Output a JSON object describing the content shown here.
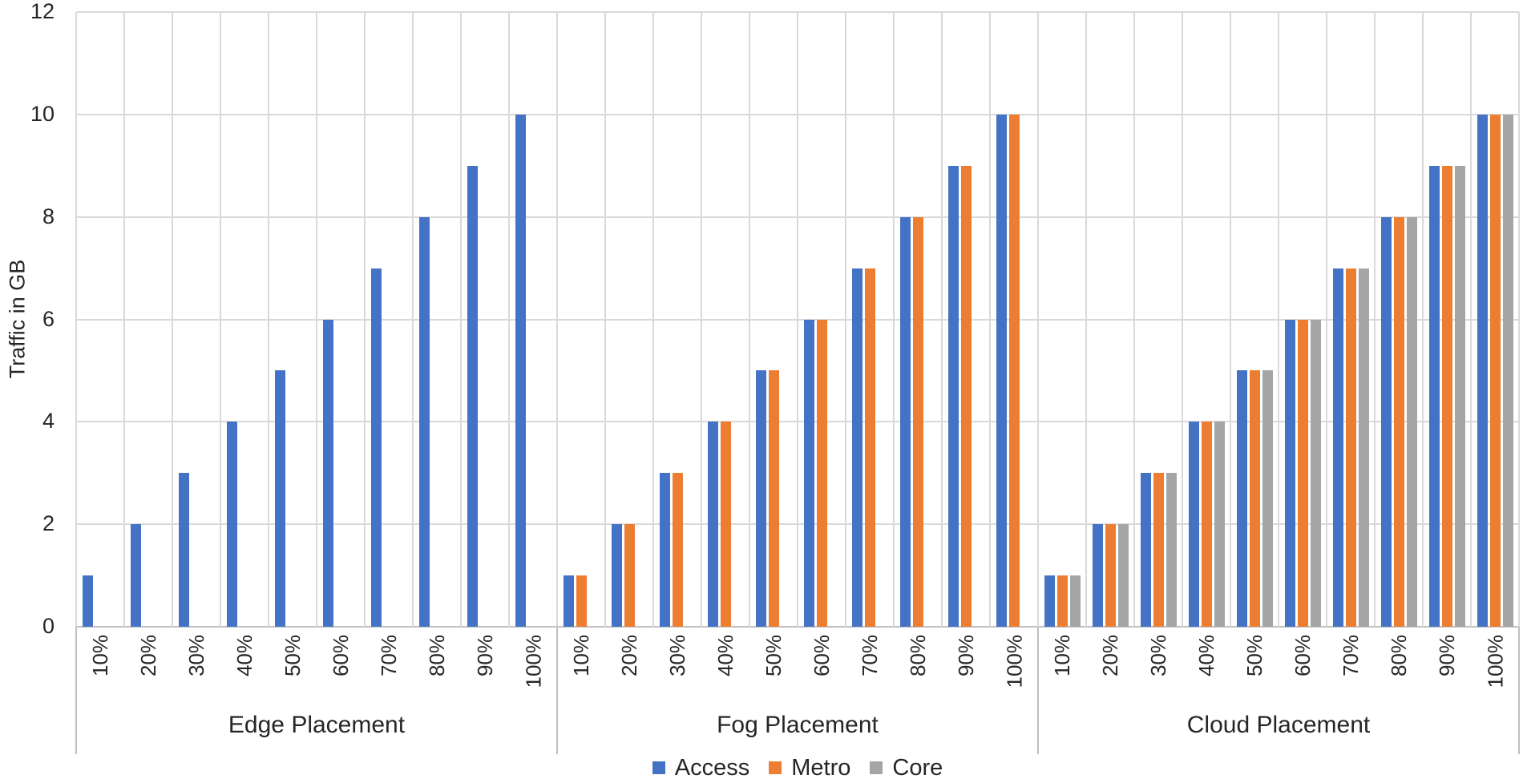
{
  "chart_data": {
    "type": "bar",
    "ylabel": "Traffic in GB",
    "ylim": [
      0,
      12
    ],
    "yticks": [
      0,
      2,
      4,
      6,
      8,
      10,
      12
    ],
    "grid": true,
    "categories": [
      "10%",
      "20%",
      "30%",
      "40%",
      "50%",
      "60%",
      "70%",
      "80%",
      "90%",
      "100%"
    ],
    "legend": {
      "position": "bottom",
      "entries": [
        {
          "name": "Access",
          "color": "#4472C4"
        },
        {
          "name": "Metro",
          "color": "#ED7D31"
        },
        {
          "name": "Core",
          "color": "#A5A5A5"
        }
      ]
    },
    "groups": [
      {
        "label": "Edge Placement",
        "series": [
          {
            "name": "Access",
            "values": [
              1,
              2,
              3,
              4,
              5,
              6,
              7,
              8,
              9,
              10
            ]
          },
          {
            "name": "Metro",
            "values": [
              0,
              0,
              0,
              0,
              0,
              0,
              0,
              0,
              0,
              0
            ]
          },
          {
            "name": "Core",
            "values": [
              0,
              0,
              0,
              0,
              0,
              0,
              0,
              0,
              0,
              0
            ]
          }
        ]
      },
      {
        "label": "Fog Placement",
        "series": [
          {
            "name": "Access",
            "values": [
              1,
              2,
              3,
              4,
              5,
              6,
              7,
              8,
              9,
              10
            ]
          },
          {
            "name": "Metro",
            "values": [
              1,
              2,
              3,
              4,
              5,
              6,
              7,
              8,
              9,
              10
            ]
          },
          {
            "name": "Core",
            "values": [
              0,
              0,
              0,
              0,
              0,
              0,
              0,
              0,
              0,
              0
            ]
          }
        ]
      },
      {
        "label": "Cloud Placement",
        "series": [
          {
            "name": "Access",
            "values": [
              1,
              2,
              3,
              4,
              5,
              6,
              7,
              8,
              9,
              10
            ]
          },
          {
            "name": "Metro",
            "values": [
              1,
              2,
              3,
              4,
              5,
              6,
              7,
              8,
              9,
              10
            ]
          },
          {
            "name": "Core",
            "values": [
              1,
              2,
              3,
              4,
              5,
              6,
              7,
              8,
              9,
              10
            ]
          }
        ]
      }
    ],
    "axis_colors": {
      "gridline": "#D9D9D9",
      "axis_line": "#BFBFBF",
      "text": "#262626"
    }
  }
}
